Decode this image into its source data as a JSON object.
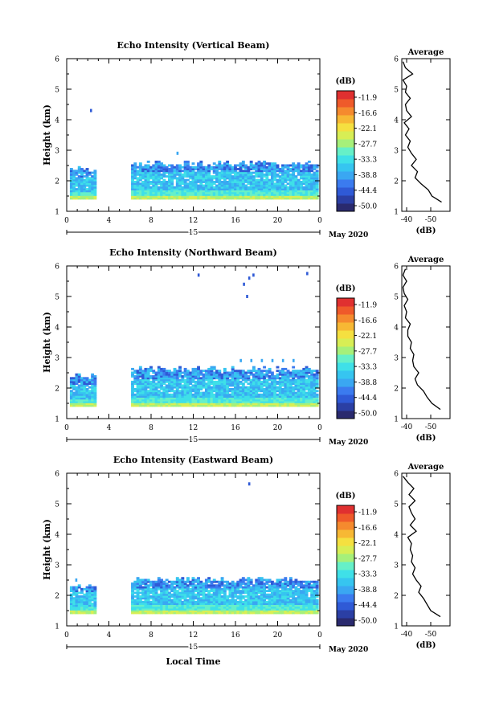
{
  "chart_data": [
    {
      "type": "heatmap",
      "title": "Echo Intensity (Vertical Beam)",
      "ylabel": "Height (km)",
      "xlim": [
        0,
        24
      ],
      "ylim": [
        1,
        6
      ],
      "x_ticks": [
        "0",
        "4",
        "8",
        "12",
        "16",
        "20",
        "0"
      ],
      "y_ticks": [
        "1",
        "2",
        "3",
        "4",
        "5",
        "6"
      ],
      "date_label": "15",
      "month_label": "May 2020",
      "echo_segments": [
        {
          "x_start": 0.3,
          "x_end": 2.8,
          "y_bottom": 1.4,
          "y_top": 2.35
        },
        {
          "x_start": 6.1,
          "x_end": 23.8,
          "y_bottom": 1.4,
          "y_top": 2.55
        }
      ],
      "sparse_echoes": [
        {
          "x": 2.3,
          "y": 4.3
        },
        {
          "x": 10.5,
          "y": 2.9
        }
      ],
      "average_profile": {
        "title": "Average",
        "xlabel": "(dB)",
        "x_ticks": [
          "-40",
          "-50"
        ],
        "ylim": [
          1,
          6
        ],
        "heights": [
          1.3,
          1.5,
          1.7,
          1.9,
          2.1,
          2.3,
          2.5,
          2.7,
          2.9,
          3.1,
          3.3,
          3.5,
          3.7,
          3.9,
          4.1,
          4.3,
          4.5,
          4.7,
          4.9,
          5.1,
          5.3,
          5.5,
          5.7,
          5.9
        ],
        "values": [
          -54.5,
          -50.5,
          -49,
          -46,
          -43.5,
          -44.5,
          -42,
          -44,
          -42,
          -40.5,
          -41.5,
          -39.5,
          -41,
          -39,
          -42,
          -40,
          -39.5,
          -41.5,
          -39.5,
          -40,
          -38.5,
          -42.5,
          -39.5,
          -38.5
        ]
      }
    },
    {
      "type": "heatmap",
      "title": "Echo Intensity (Northward Beam)",
      "ylabel": "Height (km)",
      "xlim": [
        0,
        24
      ],
      "ylim": [
        1,
        6
      ],
      "x_ticks": [
        "0",
        "4",
        "8",
        "12",
        "16",
        "20",
        "0"
      ],
      "y_ticks": [
        "1",
        "2",
        "3",
        "4",
        "5",
        "6"
      ],
      "date_label": "15",
      "month_label": "May 2020",
      "echo_segments": [
        {
          "x_start": 0.3,
          "x_end": 2.8,
          "y_bottom": 1.4,
          "y_top": 2.35
        },
        {
          "x_start": 6.1,
          "x_end": 23.8,
          "y_bottom": 1.4,
          "y_top": 2.6
        }
      ],
      "sparse_echoes": [
        {
          "x": 16.5,
          "y": 2.9
        },
        {
          "x": 17.5,
          "y": 2.9
        },
        {
          "x": 18.5,
          "y": 2.9
        },
        {
          "x": 19.5,
          "y": 2.9
        },
        {
          "x": 20.5,
          "y": 2.9
        },
        {
          "x": 21.5,
          "y": 2.9
        },
        {
          "x": 12.5,
          "y": 5.7
        },
        {
          "x": 16.8,
          "y": 5.4
        },
        {
          "x": 17.3,
          "y": 5.6
        },
        {
          "x": 17.7,
          "y": 5.7
        },
        {
          "x": 17.1,
          "y": 5.0
        },
        {
          "x": 22.8,
          "y": 5.75
        }
      ],
      "average_profile": {
        "title": "Average",
        "xlabel": "(dB)",
        "x_ticks": [
          "-40",
          "-50"
        ],
        "ylim": [
          1,
          6
        ],
        "heights": [
          1.3,
          1.5,
          1.7,
          1.9,
          2.1,
          2.3,
          2.5,
          2.7,
          2.9,
          3.1,
          3.3,
          3.5,
          3.7,
          3.9,
          4.1,
          4.3,
          4.5,
          4.7,
          4.9,
          5.1,
          5.3,
          5.5,
          5.7,
          5.9
        ],
        "values": [
          -54,
          -50.5,
          -48.5,
          -47,
          -44.5,
          -43.5,
          -45,
          -43,
          -42.5,
          -43,
          -41.5,
          -42,
          -40.5,
          -40.5,
          -41.5,
          -39.5,
          -40,
          -39,
          -40.5,
          -39,
          -38.5,
          -40,
          -38.5,
          -39.5
        ]
      }
    },
    {
      "type": "heatmap",
      "title": "Echo Intensity (Eastward Beam)",
      "ylabel": "Height (km)",
      "xlabel": "Local Time",
      "xlim": [
        0,
        24
      ],
      "ylim": [
        1,
        6
      ],
      "x_ticks": [
        "0",
        "4",
        "8",
        "12",
        "16",
        "20",
        "0"
      ],
      "y_ticks": [
        "1",
        "2",
        "3",
        "4",
        "5",
        "6"
      ],
      "date_label": "15",
      "month_label": "May 2020",
      "echo_segments": [
        {
          "x_start": 0.3,
          "x_end": 2.8,
          "y_bottom": 1.4,
          "y_top": 2.3
        },
        {
          "x_start": 6.1,
          "x_end": 23.8,
          "y_bottom": 1.4,
          "y_top": 2.5
        }
      ],
      "sparse_echoes": [
        {
          "x": 0.9,
          "y": 2.5
        },
        {
          "x": 17.3,
          "y": 5.65
        }
      ],
      "average_profile": {
        "title": "Average",
        "xlabel": "(dB)",
        "x_ticks": [
          "-40",
          "-50"
        ],
        "ylim": [
          1,
          6
        ],
        "heights": [
          1.3,
          1.5,
          1.7,
          1.9,
          2.1,
          2.3,
          2.5,
          2.7,
          2.9,
          3.1,
          3.3,
          3.5,
          3.7,
          3.9,
          4.1,
          4.3,
          4.5,
          4.7,
          4.9,
          5.1,
          5.3,
          5.5,
          5.7,
          5.9
        ],
        "values": [
          -54,
          -50,
          -48.5,
          -47,
          -45,
          -46,
          -44,
          -42.5,
          -43.5,
          -42,
          -42.5,
          -41.5,
          -42,
          -40.5,
          -44,
          -41.5,
          -43.5,
          -42,
          -41,
          -43.5,
          -41,
          -43,
          -40.5,
          -38.5
        ]
      }
    }
  ],
  "colorbar": {
    "unit": "(dB)",
    "labels": [
      "-11.9",
      "-16.6",
      "-22.1",
      "-27.7",
      "-33.3",
      "-38.8",
      "-44.4",
      "-50.0"
    ],
    "colors": [
      "#2a2a6e",
      "#2b3fa4",
      "#2f5ad6",
      "#3b7bef",
      "#3aa7f2",
      "#36c5f0",
      "#3fe0e8",
      "#66f0c8",
      "#a6f07a",
      "#d8ee55",
      "#f5e040",
      "#f7b834",
      "#f58a2e",
      "#ef5a2a",
      "#e03030"
    ]
  }
}
